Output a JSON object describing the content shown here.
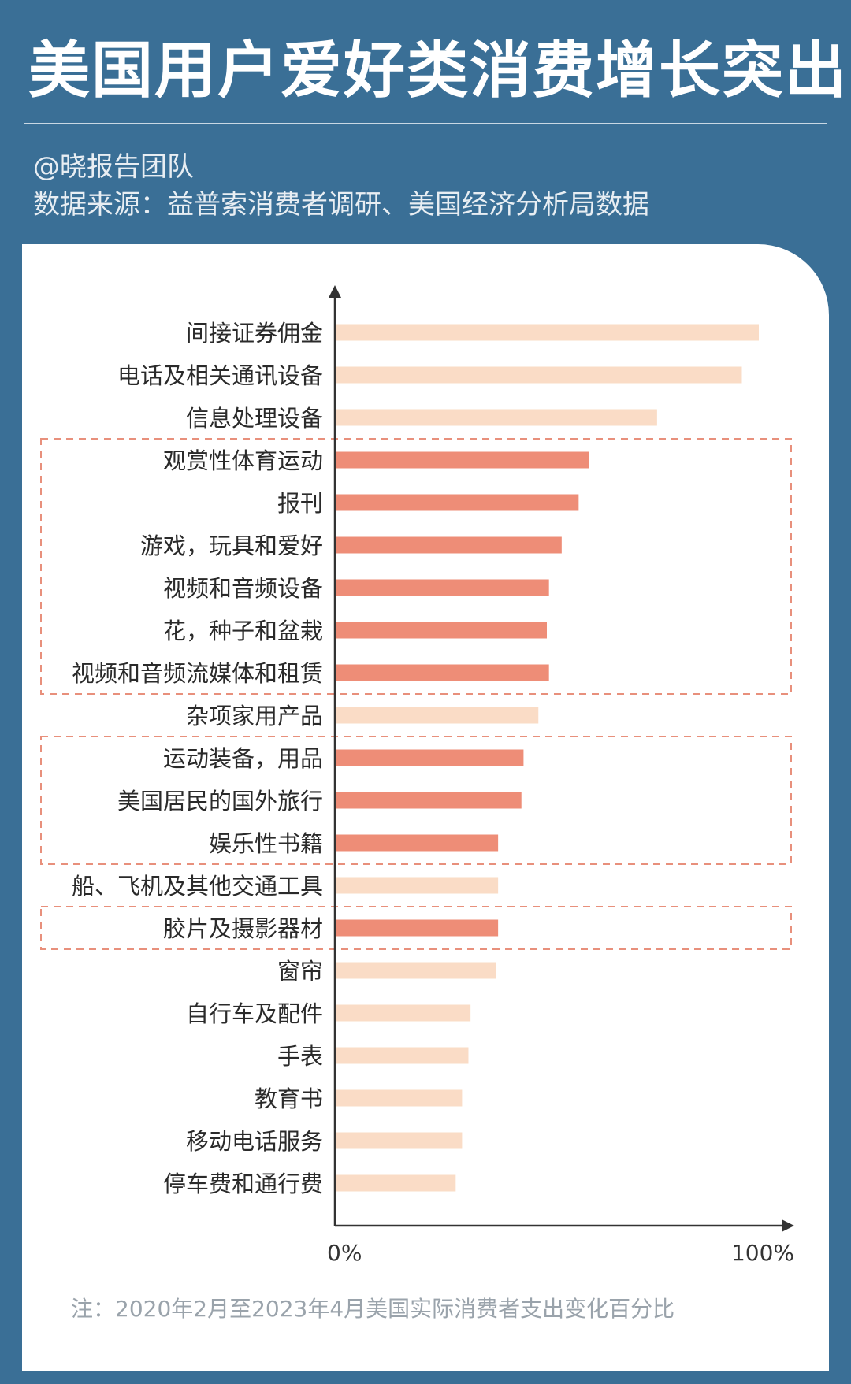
{
  "title": "美国用户爱好类消费增长突出",
  "author": "@晓报告团队",
  "source": "数据来源：益普索消费者调研、美国经济分析局数据",
  "note": "注：2020年2月至2023年4月美国实际消费者支出变化百分比",
  "colors": {
    "background": "#3a6f96",
    "highlight": "#ee8d77",
    "normal": "#fadcc6",
    "box": "#e8907c"
  },
  "chart_data": {
    "type": "bar",
    "orientation": "horizontal",
    "xlim": [
      0,
      100
    ],
    "x_tick_labels": [
      "0%",
      "100%"
    ],
    "categories": [
      "间接证券佣金",
      "电话及相关通讯设备",
      "信息处理设备",
      "观赏性体育运动",
      "报刊",
      "游戏，玩具和爱好",
      "视频和音频设备",
      "花，种子和盆栽",
      "视频和音频流媒体和租赁",
      "杂项家用产品",
      "运动装备，用品",
      "美国居民的国外旅行",
      "娱乐性书籍",
      "船、飞机及其他交通工具",
      "胶片及摄影器材",
      "窗帘",
      "自行车及配件",
      "手表",
      "教育书",
      "移动电话服务",
      "停车费和通行费"
    ],
    "values": [
      100,
      96,
      76,
      60,
      57.5,
      53.5,
      50.5,
      50,
      50.5,
      48,
      44.5,
      44,
      38.5,
      38.5,
      38.5,
      38,
      32,
      31.5,
      30,
      30,
      28.5
    ],
    "highlighted": [
      false,
      false,
      false,
      true,
      true,
      true,
      true,
      true,
      true,
      false,
      true,
      true,
      true,
      false,
      true,
      false,
      false,
      false,
      false,
      false,
      false
    ],
    "highlight_groups": [
      [
        3,
        8
      ],
      [
        10,
        12
      ],
      [
        14,
        14
      ]
    ]
  }
}
